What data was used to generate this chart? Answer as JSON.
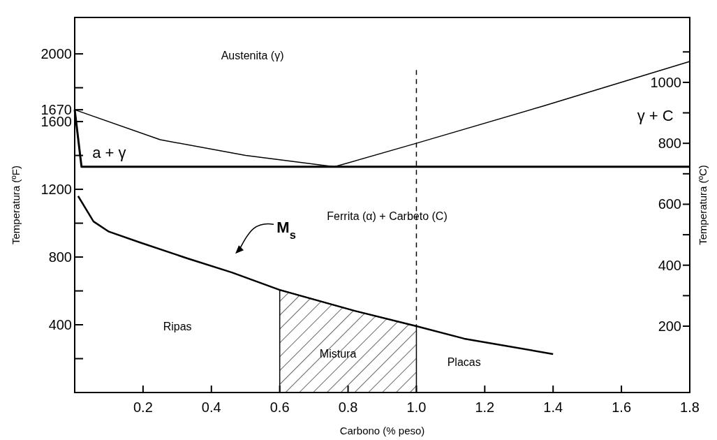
{
  "chart_data": {
    "type": "line",
    "xlabel": "Carbono (% peso)",
    "ylabel": "Temperatura (ºF)",
    "y2label": "Temperatura (ºC)",
    "xlim": [
      0,
      1.8
    ],
    "ylim": [
      0,
      2215
    ],
    "y2lim": [
      -17.8,
      1213
    ],
    "xticks": [
      0.2,
      0.4,
      0.6,
      0.8,
      {
        "value": 1,
        "label": "1.0"
      },
      1.2,
      1.4,
      1.6,
      1.8
    ],
    "yticks": [
      {
        "value": 200,
        "label": null
      },
      400,
      {
        "value": 600,
        "label": null
      },
      800,
      {
        "value": 1000,
        "label": null
      },
      1200,
      {
        "value": 1400,
        "label": null
      },
      1600,
      1670,
      {
        "value": 1800,
        "label": null
      },
      2000
    ],
    "y2ticks": [
      200,
      {
        "value": 300,
        "label": null
      },
      400,
      {
        "value": 500,
        "label": null
      },
      600,
      {
        "value": 700,
        "label": null
      },
      800,
      {
        "value": 900,
        "label": null
      },
      1000,
      {
        "value": 1100,
        "label": null
      }
    ],
    "series": [
      {
        "type": "area",
        "color": "#000000",
        "x": [
          0.6,
          0.82,
          1.0
        ],
        "values": [
          606,
          482,
          392
        ]
      },
      {
        "color": "#000000",
        "x": [
          0,
          0.25,
          0.5,
          0.76,
          1.0,
          1.37,
          1.8
        ],
        "values": [
          1670,
          1493,
          1400,
          1333,
          1472,
          1691,
          1955
        ]
      },
      {
        "color": "#000000",
        "x": [
          0,
          0.02,
          1.8
        ],
        "values": [
          1670,
          1333,
          1333
        ]
      },
      {
        "color": "#000000",
        "x": [
          0.01,
          0.055,
          0.1,
          0.19,
          0.33,
          0.46,
          0.6,
          0.82,
          1.0,
          1.14,
          1.4
        ],
        "values": [
          1160,
          1010,
          950,
          887,
          792,
          709,
          606,
          482,
          392,
          318,
          227
        ]
      },
      {
        "color": "#000000",
        "line_style": "dashed",
        "x": [
          1,
          1
        ],
        "values": [
          1905,
          392
        ]
      }
    ],
    "annotations": [
      "Austenita (γ)",
      "a + γ",
      "γ + C",
      "Ferrita (α) + Carbeto (C)",
      "Ripas",
      "Mistura",
      "Placas",
      "M$_{s}$"
    ]
  }
}
